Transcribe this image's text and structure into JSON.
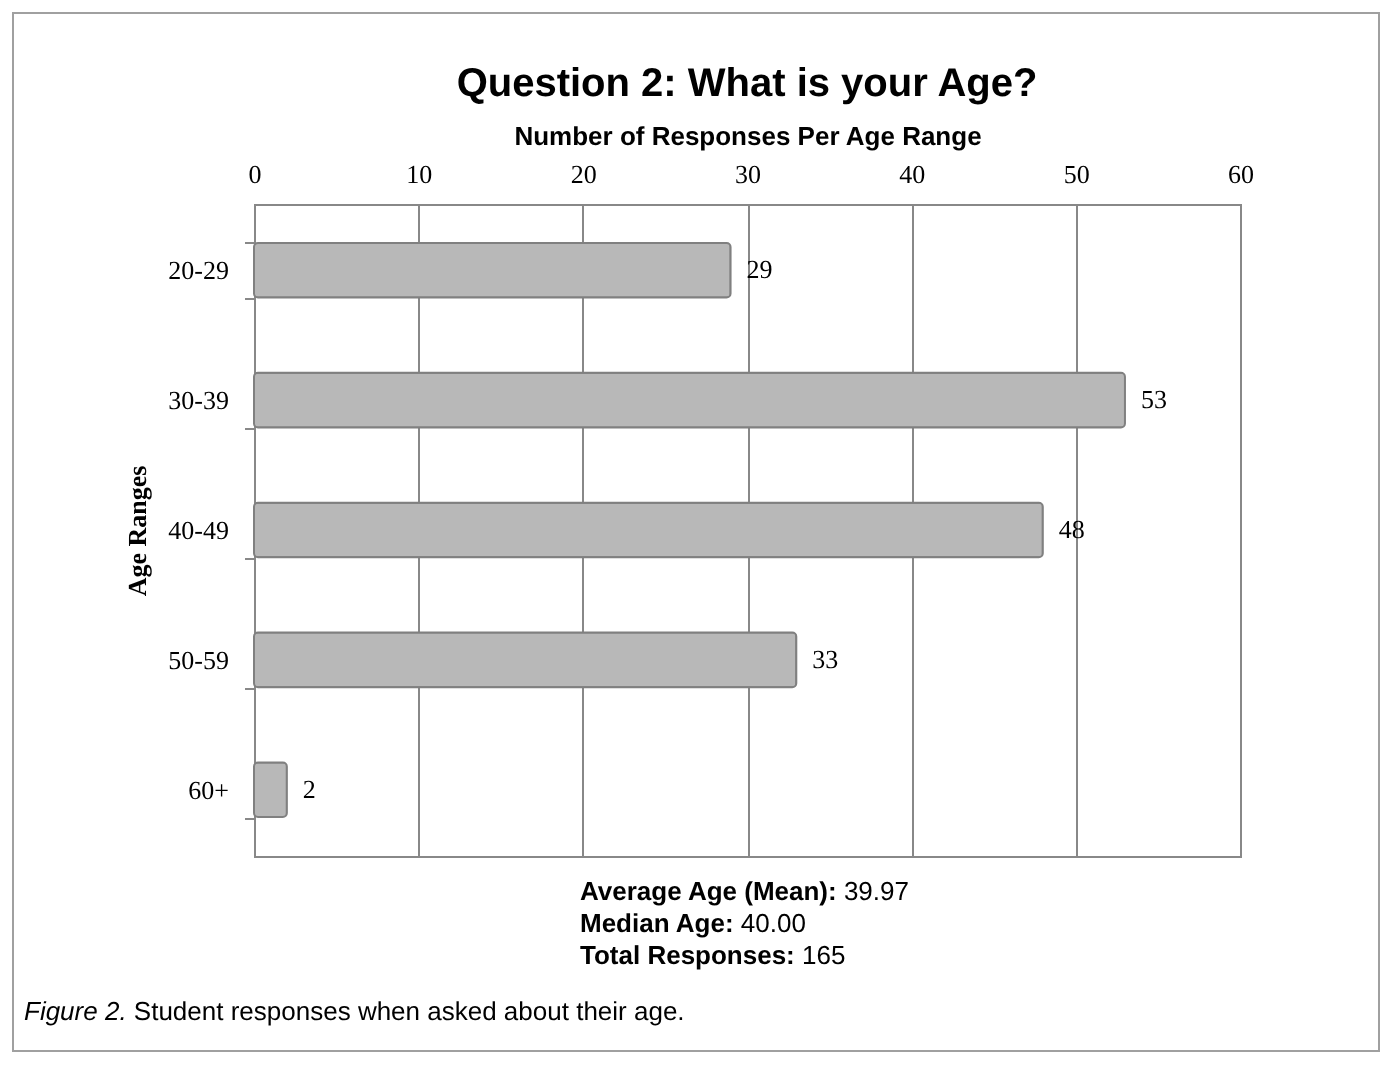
{
  "chart_data": {
    "type": "bar",
    "orientation": "horizontal",
    "title": "Question 2: What is your Age?",
    "xlabel": "Number of Responses Per Age Range",
    "ylabel": "Age Ranges",
    "categories": [
      "20-29",
      "30-39",
      "40-49",
      "50-59",
      "60+"
    ],
    "values": [
      29,
      53,
      48,
      33,
      2
    ],
    "color": "#b8b8b8",
    "xlim": [
      0,
      60
    ],
    "xticks": [
      0,
      10,
      20,
      30,
      40,
      50,
      60
    ],
    "grid": "x",
    "data_labels": true,
    "annotations": [
      "Average Age (Mean): 39.97",
      "Median Age: 40.00",
      "Total Responses: 165",
      "Figure 2. Student responses when asked about their age."
    ]
  }
}
